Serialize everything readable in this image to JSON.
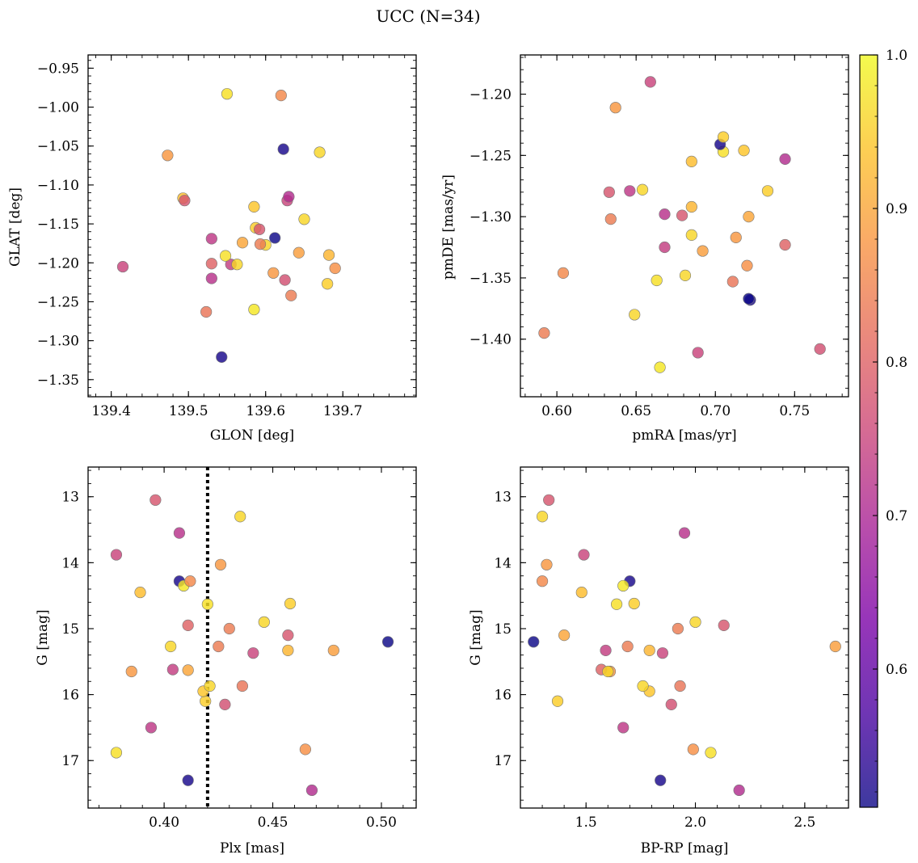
{
  "title": "UCC (N=34)",
  "colorbar": {
    "range": [
      0.51,
      1.0
    ],
    "ticks": [
      0.6,
      0.7,
      0.8,
      0.9,
      1.0
    ],
    "tick_labels": [
      "0.6",
      "0.7",
      "0.8",
      "0.9",
      "1.0"
    ],
    "colormap": "plasma"
  },
  "membership_probabilities": [
    0.75,
    0.88,
    0.93,
    0.78,
    0.73,
    0.97,
    0.72,
    0.52,
    0.98,
    0.86,
    0.8,
    0.9,
    0.96,
    0.74,
    0.52,
    0.95,
    0.94,
    0.97,
    0.96,
    0.84,
    0.88,
    0.77,
    0.84,
    0.96,
    0.83,
    0.75,
    0.96,
    0.78,
    0.95,
    0.92,
    0.87,
    0.71,
    0.89,
    0.51
  ],
  "chart_data": [
    {
      "type": "scatter",
      "name": "glon-glat",
      "xlabel": "GLON [deg]",
      "ylabel": "GLAT [deg]",
      "xlim": [
        139.37,
        139.795
      ],
      "ylim": [
        -1.372,
        -0.933
      ],
      "x_ticks": [
        139.4,
        139.5,
        139.6,
        139.7
      ],
      "x_tick_labels": [
        "139.4",
        "139.5",
        "139.6",
        "139.7"
      ],
      "y_ticks": [
        -0.95,
        -1.0,
        -1.05,
        -1.1,
        -1.15,
        -1.2,
        -1.25,
        -1.3,
        -1.35
      ],
      "y_tick_labels": [
        "−0.95",
        "−1.00",
        "−1.05",
        "−1.10",
        "−1.15",
        "−1.20",
        "−1.25",
        "−1.30",
        "−1.35"
      ],
      "x": [
        139.415,
        139.473,
        139.493,
        139.495,
        139.53,
        139.55,
        139.53,
        139.543,
        139.585,
        139.62,
        139.53,
        139.57,
        139.6,
        139.555,
        139.623,
        139.587,
        139.585,
        139.548,
        139.563,
        139.593,
        139.61,
        139.625,
        139.633,
        139.67,
        139.523,
        139.628,
        139.65,
        139.592,
        139.68,
        139.682,
        139.69,
        139.63,
        139.643,
        139.612
      ],
      "y": [
        -1.205,
        -1.062,
        -1.117,
        -1.12,
        -1.169,
        -0.983,
        -1.22,
        -1.321,
        -1.26,
        -0.985,
        -1.201,
        -1.174,
        -1.177,
        -1.202,
        -1.054,
        -1.155,
        -1.128,
        -1.191,
        -1.202,
        -1.176,
        -1.213,
        -1.222,
        -1.242,
        -1.058,
        -1.263,
        -1.12,
        -1.144,
        -1.157,
        -1.227,
        -1.19,
        -1.207,
        -1.115,
        -1.187,
        -1.168
      ]
    },
    {
      "type": "scatter",
      "name": "pmra-pmde",
      "xlabel": "pmRA [mas/yr]",
      "ylabel": "pmDE [mas/yr]",
      "xlim": [
        0.577,
        0.784
      ],
      "ylim": [
        -1.447,
        -1.168
      ],
      "x_ticks": [
        0.6,
        0.65,
        0.7,
        0.75
      ],
      "x_tick_labels": [
        "0.60",
        "0.65",
        "0.70",
        "0.75"
      ],
      "y_ticks": [
        -1.2,
        -1.25,
        -1.3,
        -1.35,
        -1.4
      ],
      "y_tick_labels": [
        "−1.20",
        "−1.25",
        "−1.30",
        "−1.35",
        "−1.40"
      ],
      "x": [
        0.659,
        0.637,
        0.685,
        0.633,
        0.646,
        0.705,
        0.668,
        0.703,
        0.665,
        0.604,
        0.744,
        0.721,
        0.681,
        0.668,
        0.722,
        0.733,
        0.718,
        0.663,
        0.654,
        0.634,
        0.713,
        0.766,
        0.592,
        0.649,
        0.711,
        0.689,
        0.685,
        0.679,
        0.705,
        0.685,
        0.72,
        0.744,
        0.692,
        0.721
      ],
      "y": [
        -1.19,
        -1.211,
        -1.255,
        -1.28,
        -1.279,
        -1.247,
        -1.298,
        -1.241,
        -1.423,
        -1.346,
        -1.323,
        -1.3,
        -1.348,
        -1.325,
        -1.368,
        -1.279,
        -1.246,
        -1.352,
        -1.278,
        -1.302,
        -1.317,
        -1.408,
        -1.395,
        -1.38,
        -1.353,
        -1.411,
        -1.315,
        -1.299,
        -1.235,
        -1.292,
        -1.34,
        -1.253,
        -1.328,
        -1.367
      ]
    },
    {
      "type": "scatter",
      "name": "plx-g",
      "xlabel": "Plx [mas]",
      "ylabel": "G [mag]",
      "xlim": [
        0.365,
        0.516
      ],
      "ylim": [
        17.72,
        12.55
      ],
      "y_inverted": true,
      "vline": 0.42,
      "x_ticks": [
        0.4,
        0.45,
        0.5
      ],
      "x_tick_labels": [
        "0.40",
        "0.45",
        "0.50"
      ],
      "y_ticks": [
        13,
        14,
        15,
        16,
        17
      ],
      "y_tick_labels": [
        "13",
        "14",
        "15",
        "16",
        "17"
      ],
      "x": [
        0.378,
        0.385,
        0.389,
        0.396,
        0.394,
        0.378,
        0.407,
        0.407,
        0.409,
        0.412,
        0.411,
        0.411,
        0.403,
        0.404,
        0.411,
        0.419,
        0.418,
        0.42,
        0.421,
        0.425,
        0.426,
        0.428,
        0.43,
        0.435,
        0.436,
        0.441,
        0.446,
        0.457,
        0.458,
        0.457,
        0.465,
        0.468,
        0.478,
        0.503
      ],
      "y": [
        13.88,
        15.65,
        14.45,
        13.05,
        16.5,
        16.88,
        13.55,
        14.28,
        14.35,
        14.28,
        14.95,
        15.63,
        15.27,
        15.62,
        17.3,
        16.1,
        15.95,
        14.63,
        15.87,
        15.27,
        14.03,
        16.15,
        15.0,
        13.3,
        15.87,
        15.37,
        14.9,
        15.1,
        14.62,
        15.33,
        16.83,
        17.45,
        15.33,
        15.2
      ]
    },
    {
      "type": "scatter",
      "name": "bprp-g",
      "xlabel": "BP-RP [mag]",
      "ylabel": "G [mag]",
      "xlim": [
        1.2,
        2.7
      ],
      "ylim": [
        17.72,
        12.55
      ],
      "y_inverted": true,
      "x_ticks": [
        1.5,
        2.0,
        2.5
      ],
      "x_tick_labels": [
        "1.5",
        "2.0",
        "2.5"
      ],
      "y_ticks": [
        13,
        14,
        15,
        16,
        17
      ],
      "y_tick_labels": [
        "13",
        "14",
        "15",
        "16",
        "17"
      ],
      "x": [
        1.49,
        1.61,
        1.48,
        1.33,
        1.67,
        2.07,
        1.95,
        1.7,
        1.67,
        1.3,
        1.57,
        1.4,
        1.6,
        1.59,
        1.84,
        1.37,
        1.79,
        1.64,
        1.76,
        1.69,
        1.32,
        1.89,
        1.92,
        1.3,
        1.93,
        1.85,
        2.0,
        2.13,
        1.72,
        1.79,
        1.99,
        2.2,
        2.64,
        1.26
      ],
      "y": [
        13.88,
        15.65,
        14.45,
        13.05,
        16.5,
        16.88,
        13.55,
        14.28,
        14.35,
        14.28,
        15.62,
        15.1,
        15.65,
        15.33,
        17.3,
        16.1,
        15.95,
        14.63,
        15.87,
        15.27,
        14.03,
        16.15,
        15.0,
        13.3,
        15.87,
        15.37,
        14.9,
        14.95,
        14.62,
        15.33,
        16.83,
        17.45,
        15.27,
        15.2
      ]
    }
  ]
}
